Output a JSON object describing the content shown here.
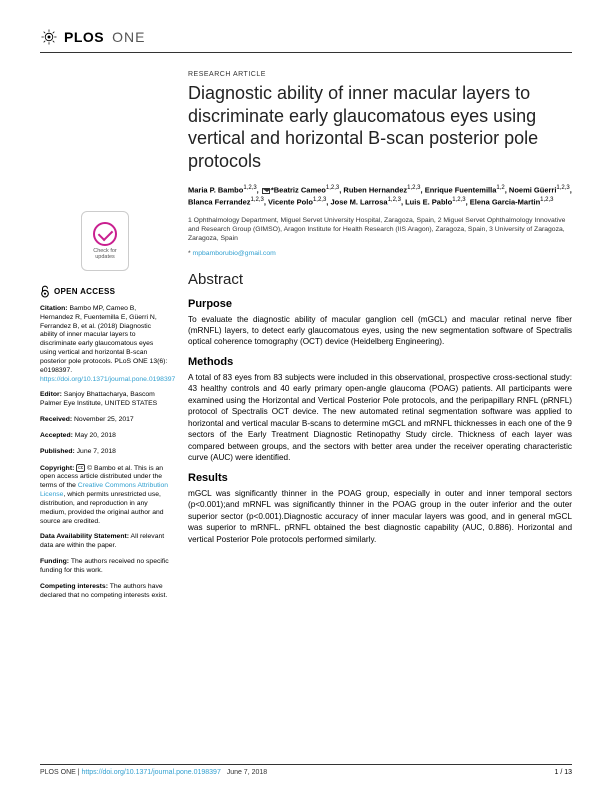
{
  "journal": {
    "publisher": "PLOS",
    "name": "ONE"
  },
  "article_type": "RESEARCH ARTICLE",
  "title": "Diagnostic ability of inner macular layers to discriminate early glaucomatous eyes using vertical and horizontal B-scan posterior pole protocols",
  "authors_html": "Maria P. Bambo<sup>1,2,3</sup>, <span class='envelope'></span>*Beatriz Cameo<sup>1,2,3</sup>, Ruben Hernandez<sup>1,2,3</sup>, Enrique Fuentemilla<sup>1,2</sup>, Noemi Güerri<sup>1,2,3</sup>, Blanca Ferrandez<sup>1,2,3</sup>, Vicente Polo<sup>1,2,3</sup>, Jose M. Larrosa<sup>1,2,3</sup>, Luis E. Pablo<sup>1,2,3</sup>, Elena Garcia-Martin<sup>1,2,3</sup>",
  "affiliations": "1 Ophthalmology Department, Miguel Servet University Hospital, Zaragoza, Spain, 2 Miguel Servet Ophthalmology Innovative and Research Group (GIMSO), Aragon Institute for Health Research (IIS Aragon), Zaragoza, Spain, 3 University of Zaragoza, Zaragoza, Spain",
  "corresponding": "mpbamborubio@gmail.com",
  "abstract_label": "Abstract",
  "sections": {
    "purpose": {
      "h": "Purpose",
      "t": "To evaluate the diagnostic ability of macular ganglion cell (mGCL) and macular retinal nerve fiber (mRNFL) layers, to detect early glaucomatous eyes, using the new segmentation software of Spectralis optical coherence tomography (OCT) device (Heidelberg Engineering)."
    },
    "methods": {
      "h": "Methods",
      "t": "A total of 83 eyes from 83 subjects were included in this observational, prospective cross-sectional study: 43 healthy controls and 40 early primary open-angle glaucoma (POAG) patients. All participants were examined using the Horizontal and Vertical Posterior Pole protocols, and the peripapillary RNFL (pRNFL) protocol of Spectralis OCT device. The new automated retinal segmentation software was applied to horizontal and vertical macular B-scans to determine mGCL and mRNFL thicknesses in each one of the 9 sectors of the Early Treatment Diagnostic Retinopathy Study circle. Thickness of each layer was compared between groups, and the sectors with better area under the receiver operating characteristic curve (AUC) were identified."
    },
    "results": {
      "h": "Results",
      "t": "mGCL was significantly thinner in the POAG group, especially in outer and inner temporal sectors (p<0.001);and mRNFL was significantly thinner in the POAG group in the outer inferior and the outer superior sector (p<0.001).Diagnostic accuracy of inner macular layers was good, and in general mGCL was superior to mRNFL. pRNFL obtained the best diagnostic capability (AUC, 0.886). Horizontal and vertical Posterior Pole protocols performed similarly."
    }
  },
  "sidebar": {
    "check": "Check for updates",
    "open_access": "OPEN ACCESS",
    "citation_label": "Citation:",
    "citation": "Bambo MP, Cameo B, Hernandez R, Fuentemilla E, Güerri N, Ferrandez B, et al. (2018) Diagnostic ability of inner macular layers to discriminate early glaucomatous eyes using vertical and horizontal B-scan posterior pole protocols. PLoS ONE 13(6): e0198397. ",
    "citation_link": "https://doi.org/10.1371/journal.pone.0198397",
    "editor_label": "Editor:",
    "editor": "Sanjoy Bhattacharya, Bascom Palmer Eye Institute, UNITED STATES",
    "received_label": "Received:",
    "received": "November 25, 2017",
    "accepted_label": "Accepted:",
    "accepted": "May 20, 2018",
    "published_label": "Published:",
    "published": "June 7, 2018",
    "copyright_label": "Copyright:",
    "copyright": "© Bambo et al. This is an open access article distributed under the terms of the ",
    "cc_link": "Creative Commons Attribution License",
    "copyright2": ", which permits unrestricted use, distribution, and reproduction in any medium, provided the original author and source are credited.",
    "data_label": "Data Availability Statement:",
    "data": "All relevant data are within the paper.",
    "funding_label": "Funding:",
    "funding": "The authors received no specific funding for this work.",
    "competing_label": "Competing interests:",
    "competing": "The authors have declared that no competing interests exist."
  },
  "footer": {
    "journal": "PLOS ONE | ",
    "doi": "https://doi.org/10.1371/journal.pone.0198397",
    "date": "June 7, 2018",
    "page": "1 / 13"
  },
  "colors": {
    "link": "#32a0d0",
    "accent": "#c91f8f",
    "text": "#000000"
  }
}
